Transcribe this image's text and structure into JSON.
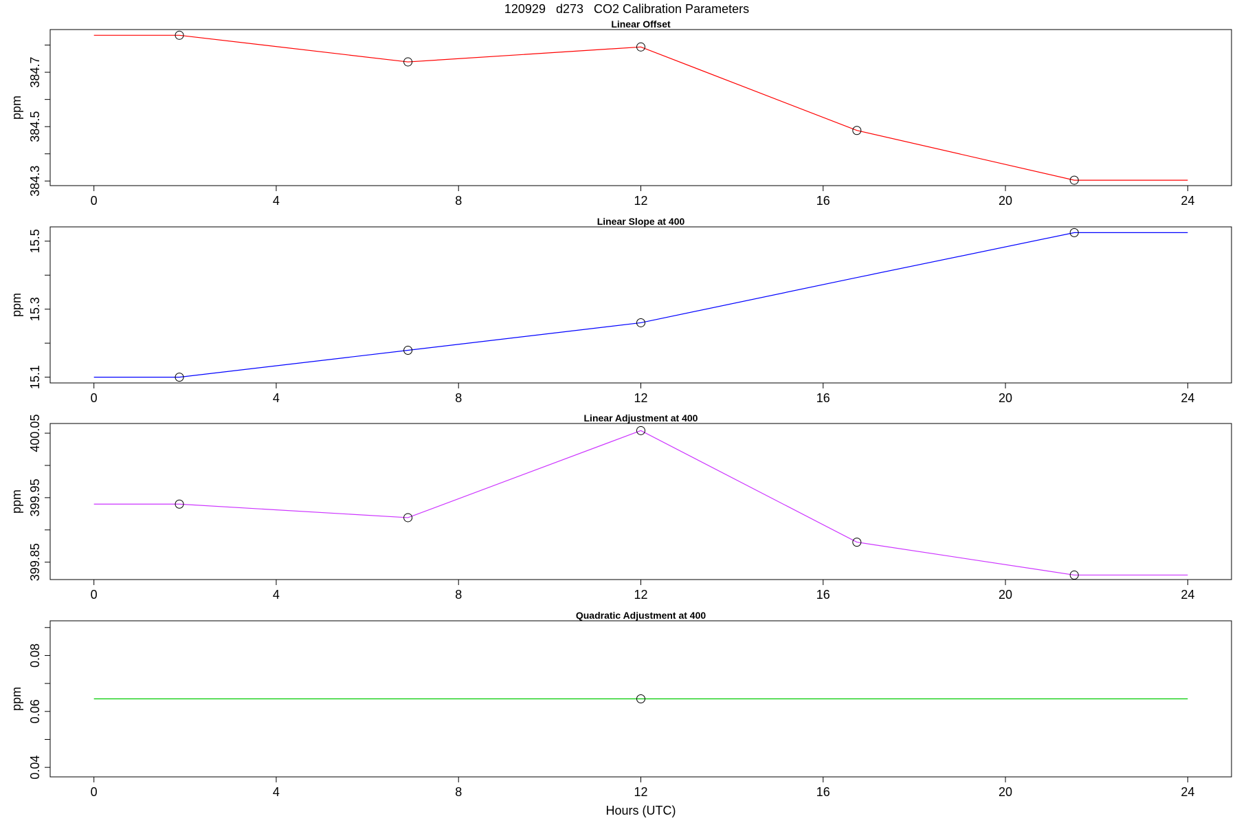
{
  "title": "120929   d273   CO2 Calibration Parameters",
  "chart_data": [
    {
      "type": "line",
      "title": "Linear Offset",
      "ylabel": "ppm",
      "x": [
        0,
        1.875,
        6.89,
        12,
        16.74,
        21.51,
        24
      ],
      "values": [
        384.836,
        384.836,
        384.738,
        384.793,
        384.486,
        384.303,
        384.303
      ],
      "marker": [
        false,
        true,
        true,
        true,
        true,
        true,
        false
      ],
      "color": "#ff0000",
      "xlim": [
        -0.96,
        24.96
      ],
      "xticks": [
        0,
        4,
        8,
        12,
        16,
        20,
        24
      ],
      "ylim": [
        384.283,
        384.857
      ],
      "yticks": [
        384.3,
        384.5,
        384.7
      ],
      "yminor_ticks": [
        384.4,
        384.6,
        384.8
      ]
    },
    {
      "type": "line",
      "title": "Linear Slope at 400",
      "ylabel": "ppm",
      "x": [
        0,
        1.875,
        6.89,
        12,
        16.74,
        21.51,
        24
      ],
      "values": [
        15.1,
        15.1,
        15.179,
        15.26,
        15.393,
        15.525,
        15.525
      ],
      "marker": [
        false,
        true,
        true,
        true,
        false,
        true,
        false
      ],
      "color": "#0000ff",
      "xlim": [
        -0.96,
        24.96
      ],
      "xticks": [
        0,
        4,
        8,
        12,
        16,
        20,
        24
      ],
      "ylim": [
        15.083,
        15.542
      ],
      "yticks": [
        15.1,
        15.3,
        15.5
      ],
      "yminor_ticks": [
        15.2,
        15.4
      ]
    },
    {
      "type": "line",
      "title": "Linear Adjustment at 400",
      "ylabel": "ppm",
      "x": [
        0,
        1.875,
        6.89,
        12,
        16.74,
        21.51,
        24
      ],
      "values": [
        399.94,
        399.94,
        399.919,
        400.054,
        399.881,
        399.83,
        399.83
      ],
      "marker": [
        false,
        true,
        true,
        true,
        true,
        true,
        false
      ],
      "color": "#cc33ff",
      "xlim": [
        -0.96,
        24.96
      ],
      "xticks": [
        0,
        4,
        8,
        12,
        16,
        20,
        24
      ],
      "ylim": [
        399.823,
        400.065
      ],
      "yticks": [
        399.85,
        399.95,
        400.05
      ],
      "yminor_ticks": [
        399.9,
        400.0
      ]
    },
    {
      "type": "line",
      "title": "Quadratic Adjustment at 400",
      "ylabel": "ppm",
      "xlabel": "Hours (UTC)",
      "x": [
        0,
        12,
        24
      ],
      "values": [
        0.0645,
        0.0645,
        0.0645
      ],
      "marker": [
        false,
        true,
        false
      ],
      "color": "#00cc00",
      "xlim": [
        -0.96,
        24.96
      ],
      "xticks": [
        0,
        4,
        8,
        12,
        16,
        20,
        24
      ],
      "ylim": [
        0.0366,
        0.0924
      ],
      "yticks": [
        0.04,
        0.06,
        0.08
      ],
      "yminor_ticks": [
        0.05,
        0.07,
        0.09
      ]
    }
  ]
}
